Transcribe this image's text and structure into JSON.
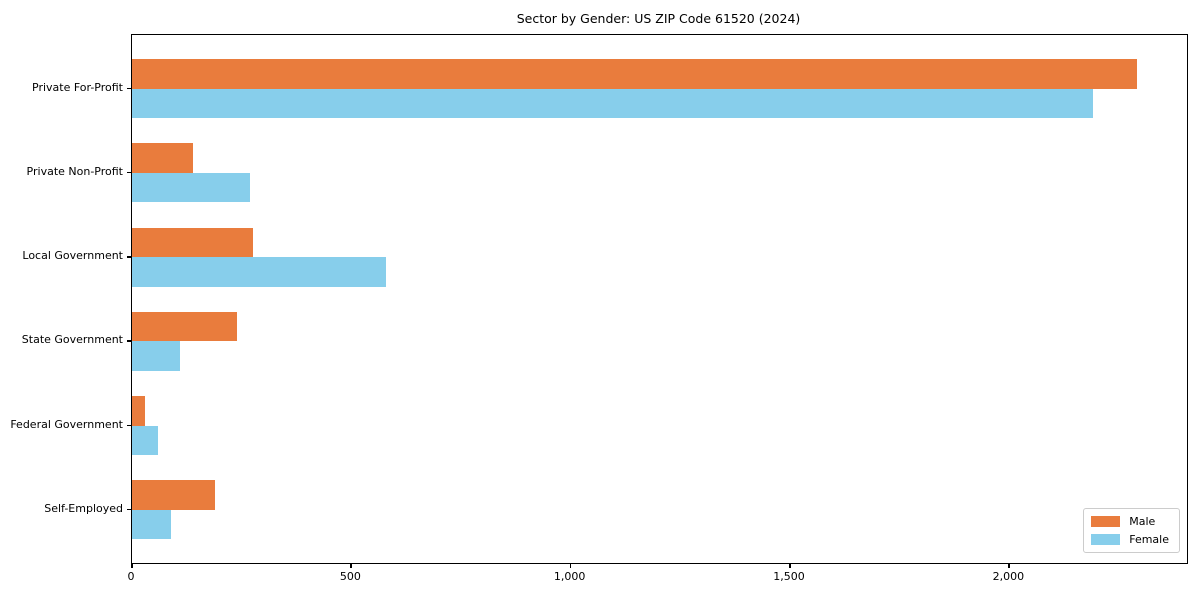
{
  "title": "Sector by Gender: US ZIP Code 61520 (2024)",
  "chart_data": {
    "type": "bar",
    "orientation": "horizontal",
    "title": "Sector by Gender: US ZIP Code 61520 (2024)",
    "categories": [
      "Private For-Profit",
      "Private Non-Profit",
      "Local Government",
      "State Government",
      "Federal Government",
      "Self-Employed"
    ],
    "series": [
      {
        "name": "Male",
        "color": "#E97C3D",
        "values": [
          2290,
          140,
          275,
          240,
          30,
          190
        ]
      },
      {
        "name": "Female",
        "color": "#87CEEB",
        "values": [
          2190,
          270,
          580,
          110,
          60,
          90
        ]
      }
    ],
    "xlabel": "",
    "ylabel": "",
    "xlim": [
      0,
      2405
    ],
    "x_ticks": [
      0,
      500,
      1000,
      1500,
      2000
    ],
    "x_tick_labels": [
      "0",
      "500",
      "1,000",
      "1,500",
      "2,000"
    ],
    "legend_position": "lower right",
    "grid": false,
    "colors": {
      "male": "#E97C3D",
      "female": "#87CEEB",
      "spine": "#000000",
      "legend_border": "#cccccc"
    }
  }
}
